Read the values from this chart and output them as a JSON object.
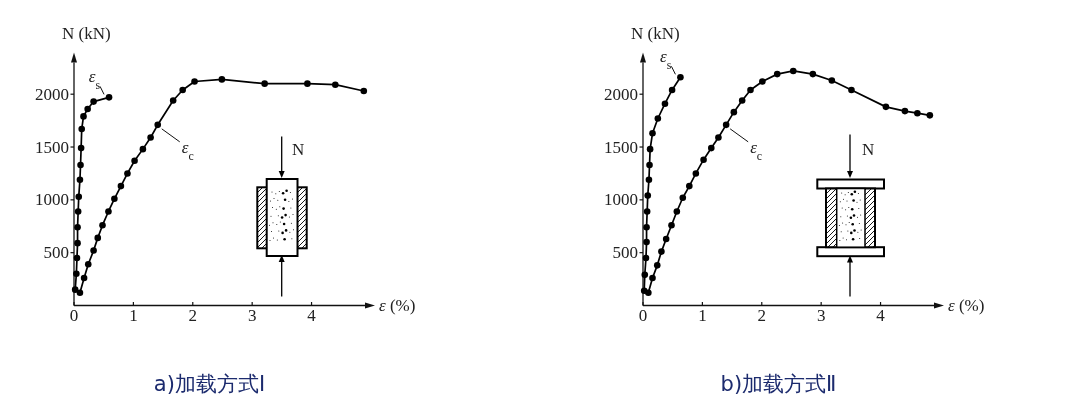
{
  "chart_data": [
    {
      "type": "line",
      "title": "a)加载方式Ⅰ",
      "xlabel": "*ε* (%)",
      "ylabel": "N (kN)",
      "xlim": [
        0,
        4.9
      ],
      "ylim": [
        0,
        2300
      ],
      "xticks": [
        0,
        1,
        2,
        3,
        4
      ],
      "yticks": [
        500,
        1000,
        1500,
        2000
      ],
      "marker": "circle",
      "annotations": [
        "N"
      ],
      "series": [
        {
          "name": "*ε*$_{s}$",
          "color": "#000000",
          "x": [
            0.02,
            0.04,
            0.05,
            0.06,
            0.06,
            0.07,
            0.08,
            0.1,
            0.11,
            0.12,
            0.13,
            0.16,
            0.23,
            0.33,
            0.59
          ],
          "values": [
            150,
            300,
            450,
            590,
            740,
            890,
            1030,
            1190,
            1330,
            1490,
            1670,
            1790,
            1860,
            1930,
            1970
          ]
        },
        {
          "name": "*ε*$_{c}$",
          "color": "#000000",
          "x": [
            0.1,
            0.17,
            0.24,
            0.33,
            0.4,
            0.48,
            0.58,
            0.68,
            0.79,
            0.9,
            1.02,
            1.16,
            1.29,
            1.41,
            1.67,
            1.83,
            2.03,
            2.49,
            3.21,
            3.93,
            4.4,
            4.88
          ],
          "values": [
            120,
            260,
            390,
            520,
            640,
            760,
            890,
            1010,
            1130,
            1250,
            1370,
            1480,
            1590,
            1710,
            1940,
            2040,
            2120,
            2140,
            2100,
            2100,
            2090,
            2030
          ]
        }
      ]
    },
    {
      "type": "line",
      "title": "b)加载方式Ⅱ",
      "xlabel": "*ε* (%)",
      "ylabel": "N (kN)",
      "xlim": [
        0,
        4.9
      ],
      "ylim": [
        0,
        2300
      ],
      "xticks": [
        0,
        1,
        2,
        3,
        4
      ],
      "yticks": [
        500,
        1000,
        1500,
        2000
      ],
      "marker": "circle",
      "annotations": [
        "N"
      ],
      "series": [
        {
          "name": "*ε*$_{s}$",
          "color": "#000000",
          "x": [
            0.02,
            0.03,
            0.05,
            0.06,
            0.06,
            0.07,
            0.08,
            0.1,
            0.11,
            0.12,
            0.16,
            0.25,
            0.37,
            0.49,
            0.63
          ],
          "values": [
            140,
            290,
            450,
            600,
            740,
            890,
            1040,
            1190,
            1330,
            1480,
            1630,
            1770,
            1910,
            2040,
            2160
          ]
        },
        {
          "name": "*ε*$_{c}$",
          "color": "#000000",
          "x": [
            0.09,
            0.16,
            0.24,
            0.31,
            0.39,
            0.48,
            0.57,
            0.67,
            0.78,
            0.89,
            1.02,
            1.15,
            1.27,
            1.4,
            1.53,
            1.67,
            1.81,
            2.01,
            2.26,
            2.53,
            2.86,
            3.18,
            3.51,
            4.09,
            4.41,
            4.62,
            4.83
          ],
          "values": [
            120,
            260,
            380,
            510,
            630,
            760,
            890,
            1020,
            1130,
            1250,
            1380,
            1490,
            1590,
            1710,
            1830,
            1940,
            2040,
            2120,
            2190,
            2220,
            2190,
            2130,
            2040,
            1880,
            1840,
            1820,
            1800
          ]
        }
      ]
    }
  ]
}
